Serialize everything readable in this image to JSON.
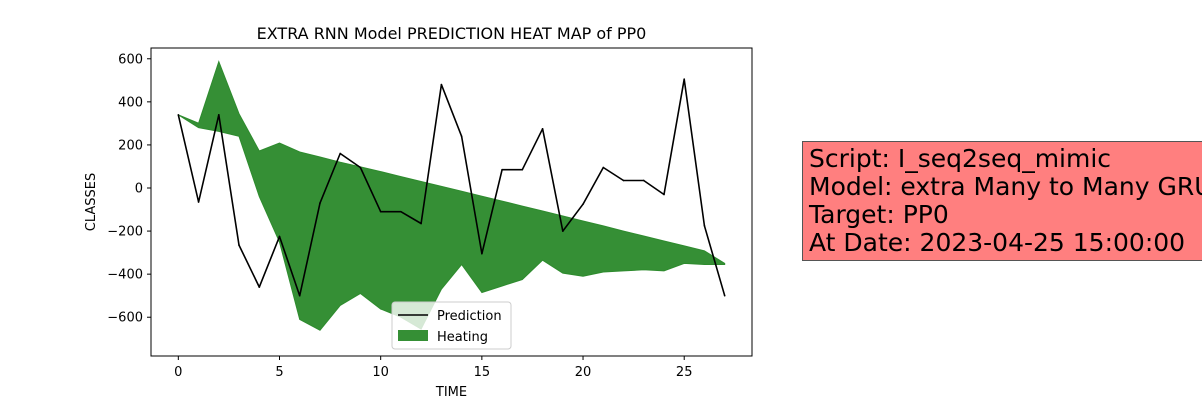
{
  "chart_data": {
    "type": "line",
    "title": "EXTRA RNN Model PREDICTION HEAT MAP of PP0",
    "xlabel": "TIME",
    "ylabel": "CLASSES",
    "xlim": [
      -1.35,
      28.35
    ],
    "ylim": [
      -780,
      650
    ],
    "xticks": [
      0,
      5,
      10,
      15,
      20,
      25
    ],
    "yticks": [
      -600,
      -400,
      -200,
      0,
      200,
      400,
      600
    ],
    "legend_position": "bottom-center",
    "series": [
      {
        "name": "Prediction",
        "kind": "line",
        "color": "#000000",
        "x": [
          0,
          1,
          2,
          3,
          4,
          5,
          6,
          7,
          8,
          9,
          10,
          11,
          12,
          13,
          14,
          15,
          16,
          17,
          18,
          19,
          20,
          21,
          22,
          23,
          24,
          25,
          26,
          27
        ],
        "y": [
          340,
          -65,
          340,
          -265,
          -460,
          -225,
          -500,
          -70,
          160,
          95,
          -110,
          -110,
          -165,
          480,
          240,
          -305,
          85,
          85,
          275,
          -200,
          -75,
          95,
          35,
          35,
          -30,
          505,
          -175,
          -500
        ]
      },
      {
        "name": "Heating",
        "kind": "fill_between",
        "color": "#2e8b2e",
        "x": [
          0,
          1,
          2,
          3,
          4,
          5,
          6,
          7,
          8,
          9,
          10,
          11,
          12,
          13,
          14,
          15,
          16,
          17,
          18,
          19,
          20,
          21,
          22,
          23,
          24,
          25,
          26,
          27
        ],
        "upper": [
          340,
          301,
          587,
          345,
          172,
          209,
          167,
          144,
          120,
          98,
          76,
          53,
          30,
          8,
          -15,
          -38,
          -61,
          -84,
          -107,
          -130,
          -153,
          -176,
          -200,
          -223,
          -246,
          -269,
          -292,
          -350
        ],
        "lower": [
          340,
          280,
          263,
          240,
          -40,
          -251,
          -610,
          -660,
          -545,
          -490,
          -562,
          -600,
          -655,
          -470,
          -355,
          -485,
          -455,
          -425,
          -335,
          -395,
          -410,
          -390,
          -385,
          -380,
          -385,
          -350,
          -355,
          -355
        ]
      }
    ]
  },
  "info": {
    "lines": [
      "Script: I_seq2seq_mimic",
      "Model: extra Many to Many GRU",
      "Target: PP0",
      "At Date: 2023-04-25 15:00:00"
    ]
  }
}
